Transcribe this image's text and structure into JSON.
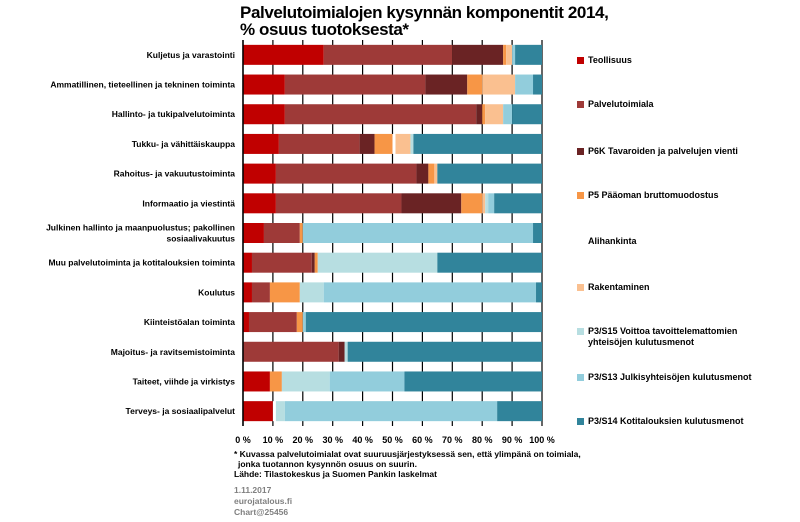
{
  "title": "Palvelutoimialojen kysynnän komponentit 2014,",
  "subtitle": "% osuus tuotoksesta*",
  "footnote_lines": [
    "* Kuvassa palvelutoimialat  ovat suuruusjärjestyksessä sen, että ylimpänä on toimiala,",
    "  jonka tuotannon kysynnön osuus on suurin.",
    "Lähde: Tilastokeskus ja Suomen Pankin laskelmat"
  ],
  "meta": {
    "date": "1.11.2017",
    "id1": "eurojatalous.fi",
    "id2": "Chart@25456"
  },
  "chart_data": {
    "type": "bar",
    "orientation": "horizontal",
    "stacked": true,
    "xlim": [
      0,
      100
    ],
    "x_ticks": [
      "0 %",
      "10 %",
      "20 %",
      "30 %",
      "40 %",
      "50 %",
      "60 %",
      "70 %",
      "80 %",
      "90 %",
      "100 %"
    ],
    "grid": true,
    "legend_position": "right",
    "categories": [
      "Kuljetus ja varastointi",
      "Ammatillinen, tieteellinen ja tekninen toiminta",
      "Hallinto- ja tukipalvelutoiminta",
      "Tukku- ja vähittäiskauppa",
      "Rahoitus- ja vakuutustoiminta",
      "Informaatio ja viestintä",
      "Julkinen hallinto ja maanpuolustus; pakollinen sosiaalivakuutus",
      "Muu palvelutoiminta ja kotitalouksien toiminta",
      "Koulutus",
      "Kiinteistöalan toiminta",
      "Majoitus- ja ravitsemistoiminta",
      "Taiteet, viihde ja virkistys",
      "Terveys- ja sosiaalipalvelut"
    ],
    "category_lines": [
      [
        "Kuljetus ja varastointi"
      ],
      [
        "Ammatillinen, tieteellinen ja tekninen toiminta"
      ],
      [
        "Hallinto- ja tukipalvelutoiminta"
      ],
      [
        "Tukku- ja vähittäiskauppa"
      ],
      [
        "Rahoitus- ja vakuutustoiminta"
      ],
      [
        "Informaatio ja viestintä"
      ],
      [
        "Julkinen hallinto ja maanpuolustus; pakollinen",
        "sosiaalivakuutus"
      ],
      [
        "Muu palvelutoiminta ja kotitalouksien toiminta"
      ],
      [
        "Koulutus"
      ],
      [
        "Kiinteistöalan toiminta"
      ],
      [
        "Majoitus- ja ravitsemistoiminta"
      ],
      [
        "Taiteet, viihde ja virkistys"
      ],
      [
        "Terveys- ja sosiaalipalvelut"
      ]
    ],
    "series": [
      {
        "name": "Teollisuus",
        "color": "#c00000",
        "values": [
          27,
          14,
          14,
          12,
          11,
          11,
          7,
          3,
          3,
          2,
          0,
          9,
          10
        ]
      },
      {
        "name": "Palvelutoimiala",
        "color": "#9e3a38",
        "values": [
          43,
          47,
          64,
          27,
          47,
          42,
          12,
          20,
          6,
          16,
          32,
          0,
          0
        ]
      },
      {
        "name": "P6K Tavaroiden ja palvelujen vienti",
        "color": "#6a2324",
        "values": [
          17,
          14,
          2,
          5,
          4,
          20,
          0,
          1,
          0,
          0,
          2,
          0,
          0
        ]
      },
      {
        "name": "P5 Pääoman bruttomuodostus",
        "color": "#f79646",
        "values": [
          1,
          5,
          1,
          6,
          2,
          7,
          1,
          1,
          10,
          2,
          0,
          4,
          0
        ]
      },
      {
        "name": "Alihankinta",
        "color": "#ffffff",
        "values": [
          0,
          0,
          0,
          1,
          0,
          0,
          0,
          0,
          0,
          0,
          0,
          0,
          1
        ]
      },
      {
        "name": "Rakentaminen",
        "color": "#fac090",
        "values": [
          2,
          11,
          6,
          5,
          1,
          1,
          0,
          0,
          0,
          0,
          0,
          0,
          0
        ]
      },
      {
        "name": "P3/S15 Voittoa tavoittelemattomien yhteisöjen kulutusmenot",
        "color": "#b7dee1",
        "values": [
          0,
          0,
          0,
          1,
          0,
          1,
          0,
          40,
          8,
          0,
          1,
          16,
          3
        ]
      },
      {
        "name": "P3/S13 Julkisyhteisöjen kulutusmenot",
        "color": "#92cddc",
        "values": [
          1,
          6,
          3,
          0,
          0,
          2,
          77,
          0,
          71,
          1,
          0,
          25,
          71
        ]
      },
      {
        "name": "P3/S14 Kotitalouksien kulutusmenot",
        "color": "#31849b",
        "values": [
          9,
          3,
          10,
          43,
          35,
          16,
          3,
          35,
          2,
          79,
          65,
          46,
          15
        ]
      }
    ]
  }
}
